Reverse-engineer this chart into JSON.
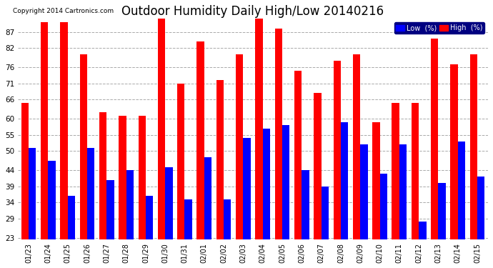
{
  "title": "Outdoor Humidity Daily High/Low 20140216",
  "copyright": "Copyright 2014 Cartronics.com",
  "dates": [
    "01/23",
    "01/24",
    "01/25",
    "01/26",
    "01/27",
    "01/28",
    "01/29",
    "01/30",
    "01/31",
    "02/01",
    "02/02",
    "02/03",
    "02/04",
    "02/05",
    "02/06",
    "02/07",
    "02/08",
    "02/09",
    "02/10",
    "02/11",
    "02/12",
    "02/13",
    "02/14",
    "02/15"
  ],
  "high": [
    65,
    90,
    90,
    80,
    62,
    61,
    61,
    91,
    71,
    84,
    72,
    80,
    91,
    88,
    75,
    68,
    78,
    80,
    59,
    65,
    65,
    85,
    77,
    80
  ],
  "low": [
    51,
    47,
    36,
    51,
    41,
    44,
    36,
    45,
    35,
    48,
    35,
    54,
    57,
    58,
    44,
    39,
    59,
    52,
    43,
    52,
    28,
    40,
    53,
    42
  ],
  "high_color": "#ff0000",
  "low_color": "#0000ff",
  "bg_color": "#ffffff",
  "plot_bg_color": "#ffffff",
  "grid_color": "#aaaaaa",
  "ylim_min": 23,
  "ylim_max": 90,
  "yticks": [
    23,
    29,
    34,
    39,
    44,
    50,
    55,
    60,
    66,
    71,
    76,
    82,
    87
  ],
  "title_fontsize": 12,
  "bar_width": 0.38,
  "legend_low_label": "Low  (%)",
  "legend_high_label": "High  (%)"
}
